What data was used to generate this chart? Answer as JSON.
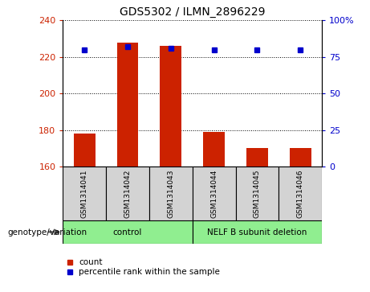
{
  "title": "GDS5302 / ILMN_2896229",
  "samples": [
    "GSM1314041",
    "GSM1314042",
    "GSM1314043",
    "GSM1314044",
    "GSM1314045",
    "GSM1314046"
  ],
  "counts": [
    178,
    228,
    226,
    179,
    170,
    170
  ],
  "percentile_ranks": [
    80,
    82,
    81,
    80,
    80,
    80
  ],
  "ylim_left": [
    160,
    240
  ],
  "ylim_right": [
    0,
    100
  ],
  "yticks_left": [
    160,
    180,
    200,
    220,
    240
  ],
  "yticks_right": [
    0,
    25,
    50,
    75,
    100
  ],
  "ytick_labels_right": [
    "0",
    "25",
    "50",
    "75",
    "100%"
  ],
  "bar_color": "#cc2200",
  "marker_color": "#0000cc",
  "group_label": "genotype/variation",
  "legend_count": "count",
  "legend_percentile": "percentile rank within the sample",
  "tick_label_color_left": "#cc2200",
  "tick_label_color_right": "#0000cc",
  "group1_label": "control",
  "group1_indices": [
    0,
    1,
    2
  ],
  "group2_label": "NELF B subunit deletion",
  "group2_indices": [
    3,
    4,
    5
  ],
  "group_color": "#90ee90"
}
